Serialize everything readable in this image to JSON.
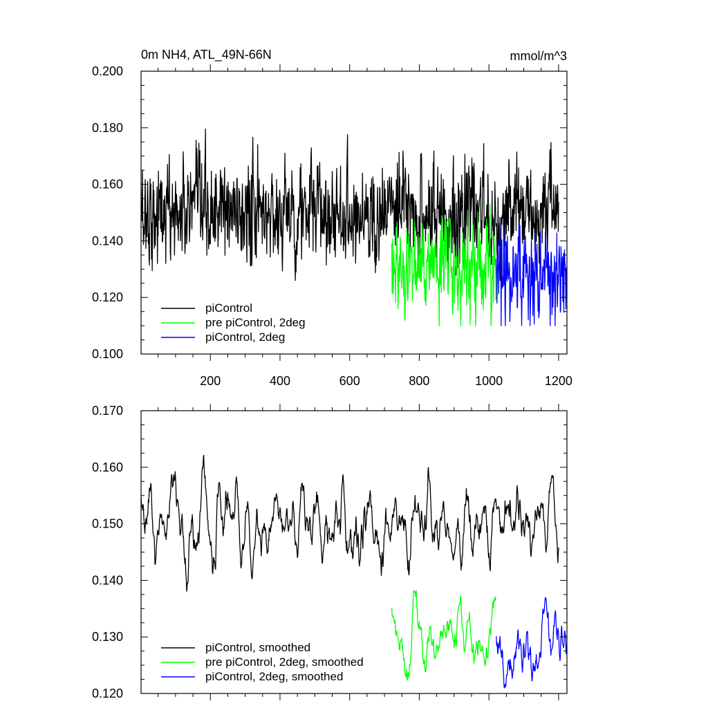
{
  "figure": {
    "title_left": "0m NH4, ATL_49N-66N",
    "title_right": "mmol/m^3"
  },
  "chart_data": [
    {
      "type": "line",
      "panel": "top",
      "xlim": [
        1,
        1224
      ],
      "ylim": [
        0.1,
        0.2
      ],
      "x_ticks": [
        200,
        400,
        600,
        800,
        1000,
        1200
      ],
      "x_tick_labels": [
        "200",
        "400",
        "600",
        "800",
        "1000",
        "1200"
      ],
      "y_ticks": [
        0.1,
        0.12,
        0.14,
        0.16,
        0.18,
        0.2
      ],
      "y_tick_labels": [
        "0.100",
        "0.120",
        "0.140",
        "0.160",
        "0.180",
        "0.200"
      ],
      "legend_position": "bottom-left",
      "series": [
        {
          "name": "piControl",
          "color": "#000000",
          "x_range": [
            1,
            1200
          ],
          "mean": 0.15,
          "std": 0.009,
          "min": 0.126,
          "max": 0.186
        },
        {
          "name": "pre piControl, 2deg",
          "color": "#00ff00",
          "x_range": [
            721,
            1020
          ],
          "mean": 0.131,
          "std": 0.0085,
          "min": 0.11,
          "max": 0.155
        },
        {
          "name": "piControl, 2deg",
          "color": "#0000ff",
          "x_range": [
            1021,
            1224
          ],
          "mean": 0.128,
          "std": 0.0085,
          "min": 0.11,
          "max": 0.152
        }
      ]
    },
    {
      "type": "line",
      "panel": "bottom",
      "xlim": [
        1,
        1224
      ],
      "ylim": [
        0.12,
        0.17
      ],
      "x_ticks": [
        200,
        400,
        600,
        800,
        1000,
        1200
      ],
      "y_ticks": [
        0.12,
        0.13,
        0.14,
        0.15,
        0.16,
        0.17
      ],
      "y_tick_labels": [
        "0.120",
        "0.130",
        "0.140",
        "0.150",
        "0.160",
        "0.170"
      ],
      "legend_position": "bottom-left",
      "series": [
        {
          "name": "piControl, smoothed",
          "color": "#000000",
          "x_range": [
            1,
            1200
          ],
          "mean": 0.15,
          "std": 0.0038,
          "min": 0.137,
          "max": 0.164
        },
        {
          "name": "pre piControl, 2deg, smoothed",
          "color": "#00ff00",
          "x_range": [
            721,
            1020
          ],
          "mean": 0.13,
          "std": 0.0035,
          "min": 0.121,
          "max": 0.14
        },
        {
          "name": "piControl, 2deg, smoothed",
          "color": "#0000ff",
          "x_range": [
            1021,
            1224
          ],
          "mean": 0.128,
          "std": 0.0035,
          "min": 0.121,
          "max": 0.138
        }
      ]
    }
  ]
}
